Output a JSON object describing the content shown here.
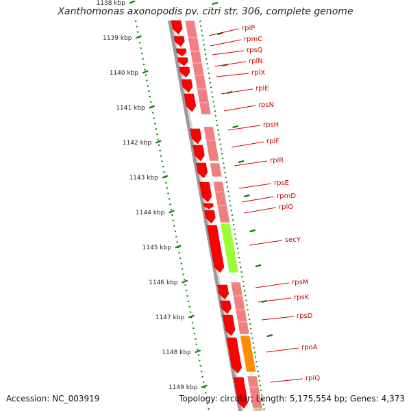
{
  "title": "Xanthomonas axonopodis pv. citri str. 306, complete genome",
  "accession": "Accession: NC_003919",
  "summary": "Topology: circular; Length: 5,175,554 bp; Genes: 4,373",
  "scale": {
    "ticks": [
      "1138 kbp",
      "1139 kbp",
      "1140 kbp",
      "1141 kbp",
      "1142 kbp",
      "1143 kbp",
      "1144 kbp",
      "1145 kbp",
      "1146 kbp",
      "1147 kbp",
      "1148 kbp",
      "1149 kbp"
    ]
  },
  "genes": [
    {
      "name": "rplP",
      "color": "#ff0000"
    },
    {
      "name": "rpmC",
      "color": "#ff0000"
    },
    {
      "name": "rpsQ",
      "color": "#ff0000"
    },
    {
      "name": "rplN",
      "color": "#ff0000"
    },
    {
      "name": "rplX",
      "color": "#ff0000"
    },
    {
      "name": "rplE",
      "color": "#ff0000"
    },
    {
      "name": "rpsN",
      "color": "#ff0000"
    },
    {
      "name": "rpsH",
      "color": "#ff0000"
    },
    {
      "name": "rplF",
      "color": "#ff0000"
    },
    {
      "name": "rplR",
      "color": "#ff0000"
    },
    {
      "name": "rpsE",
      "color": "#ff0000"
    },
    {
      "name": "rpmD",
      "color": "#ff0000"
    },
    {
      "name": "rplO",
      "color": "#ff0000"
    },
    {
      "name": "secY",
      "color": "#ff0000"
    },
    {
      "name": "rpsM",
      "color": "#ff0000"
    },
    {
      "name": "rpsK",
      "color": "#ff0000"
    },
    {
      "name": "rpsD",
      "color": "#ff0000"
    },
    {
      "name": "rpoA",
      "color": "#ff0000"
    },
    {
      "name": "rplQ",
      "color": "#ff0000"
    }
  ],
  "colors": {
    "gene": "#ff0000",
    "gene_label": "#cc0000",
    "cog_pink": "#f08080",
    "cog_green": "#99ff33",
    "cog_orange": "#ff8c00",
    "cog_tan": "#d4c080",
    "tick": "#008000",
    "backbone": "#888888"
  }
}
